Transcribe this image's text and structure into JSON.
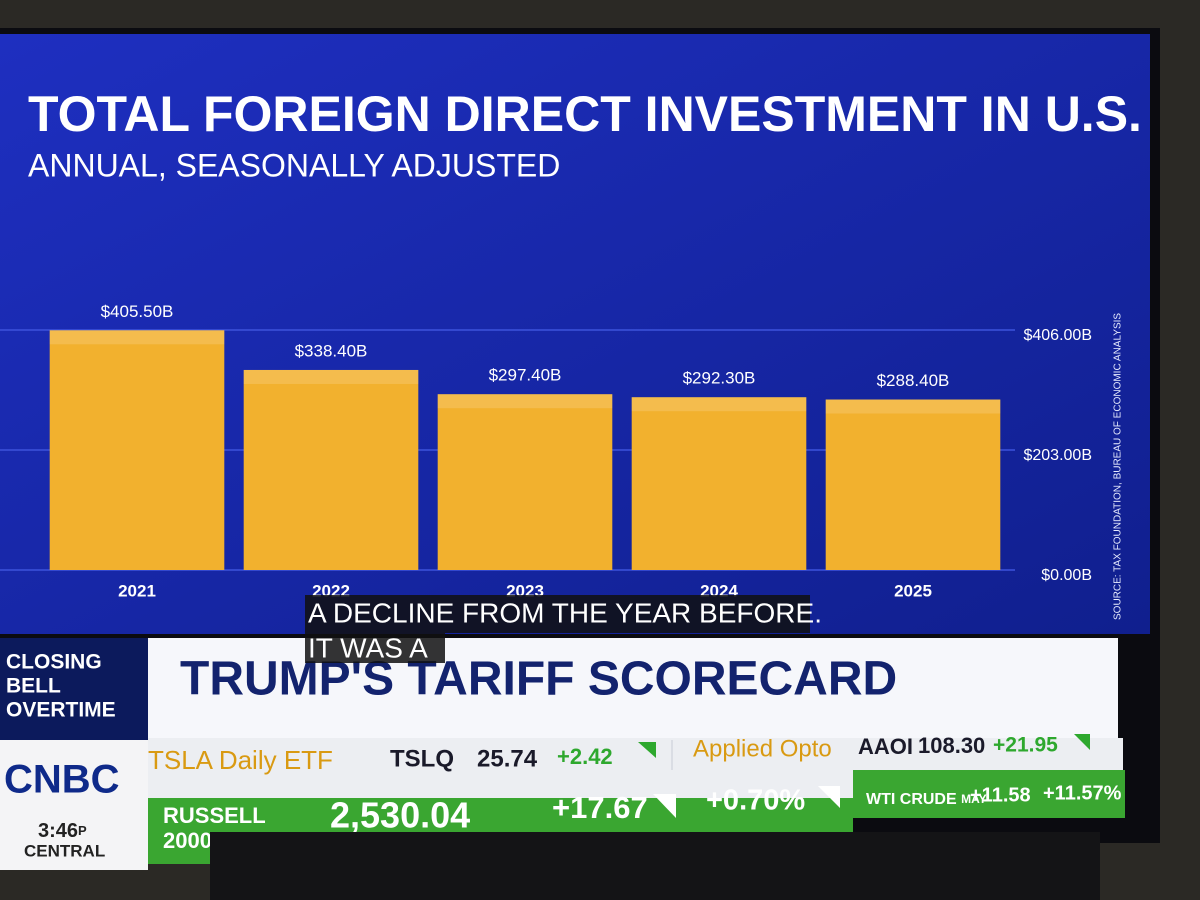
{
  "chart_data": {
    "type": "bar",
    "title": "TOTAL FOREIGN DIRECT INVESTMENT IN U.S.",
    "subtitle": "ANNUAL, SEASONALLY ADJUSTED",
    "source": "SOURCE: TAX FOUNDATION, BUREAU OF ECONOMIC ANALYSIS",
    "categories": [
      "2021",
      "2022",
      "2023",
      "2024",
      "2025"
    ],
    "values": [
      405.5,
      338.4,
      297.4,
      292.3,
      288.4
    ],
    "value_labels": [
      "$405.50B",
      "$338.40B",
      "$297.40B",
      "$292.30B",
      "$288.40B"
    ],
    "color": "#f2b12e",
    "ylim": [
      0,
      406
    ],
    "yticks": [
      {
        "value": 0,
        "label": "$0.00B"
      },
      {
        "value": 203,
        "label": "$203.00B"
      },
      {
        "value": 406,
        "label": "$406.00B"
      }
    ],
    "grid": true
  },
  "caption": [
    "A DECLINE FROM THE YEAR BEFORE.",
    "IT WAS A"
  ],
  "show": {
    "lines": [
      "CLOSING",
      "BELL",
      "OVERTIME"
    ],
    "headline": "TRUMP'S TARIFF SCORECARD"
  },
  "network": {
    "logo": "CNBC",
    "time": "3:46",
    "ampm": "P",
    "zone": "CENTRAL"
  },
  "ticker": [
    {
      "name": "TSLA Daily ETF",
      "symbol": "TSLQ",
      "price": "25.74",
      "change": "+2.42"
    },
    {
      "name": "Applied Opto",
      "symbol": "AAOI",
      "price": "108.30",
      "change": "+21.95"
    }
  ],
  "index": {
    "name": [
      "RUSSELL",
      "2000"
    ],
    "value": "2,530.04",
    "change": "+17.67",
    "percent": "+0.70%"
  },
  "commodity": {
    "name": "WTI CRUDE",
    "month": "MAY",
    "change": "+11.58",
    "percent": "+11.57%"
  }
}
